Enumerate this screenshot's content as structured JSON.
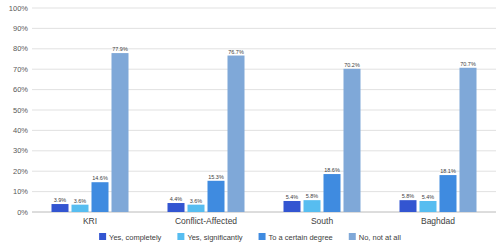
{
  "chart_data": {
    "type": "bar",
    "categories": [
      "KRI",
      "Conflict-Affected",
      "South",
      "Baghdad"
    ],
    "series": [
      {
        "name": "Yes, completely",
        "color": "#3355d1",
        "values": [
          3.9,
          4.4,
          5.4,
          5.8
        ],
        "value_labels": [
          "3.9%",
          "4.4%",
          "5.4%",
          "5.8%"
        ]
      },
      {
        "name": "Yes, significantly",
        "color": "#57bdf0",
        "values": [
          3.6,
          3.6,
          5.8,
          5.4
        ],
        "value_labels": [
          "3.6%",
          "3.6%",
          "5.8%",
          "5.4%"
        ]
      },
      {
        "name": "To a certain degree",
        "color": "#3f8be0",
        "values": [
          14.6,
          15.3,
          18.6,
          18.1
        ],
        "value_labels": [
          "14.6%",
          "15.3%",
          "18.6%",
          "18.1%"
        ]
      },
      {
        "name": "No, not at all",
        "color": "#7fa8d8",
        "values": [
          77.9,
          76.7,
          70.2,
          70.7
        ],
        "value_labels": [
          "77.9%",
          "76.7%",
          "70.2%",
          "70.7%"
        ]
      }
    ],
    "ylim": [
      0,
      100
    ],
    "yticks": [
      {
        "value": 0,
        "label": "0%"
      },
      {
        "value": 10,
        "label": "10%"
      },
      {
        "value": 20,
        "label": "20%"
      },
      {
        "value": 30,
        "label": "30%"
      },
      {
        "value": 40,
        "label": "40%"
      },
      {
        "value": 50,
        "label": "50%"
      },
      {
        "value": 60,
        "label": "60%"
      },
      {
        "value": 70,
        "label": "70%"
      },
      {
        "value": 80,
        "label": "80%"
      },
      {
        "value": 90,
        "label": "90%"
      },
      {
        "value": 100,
        "label": "100%"
      }
    ],
    "grid": true,
    "legend": "bottom",
    "data_labels": true
  }
}
